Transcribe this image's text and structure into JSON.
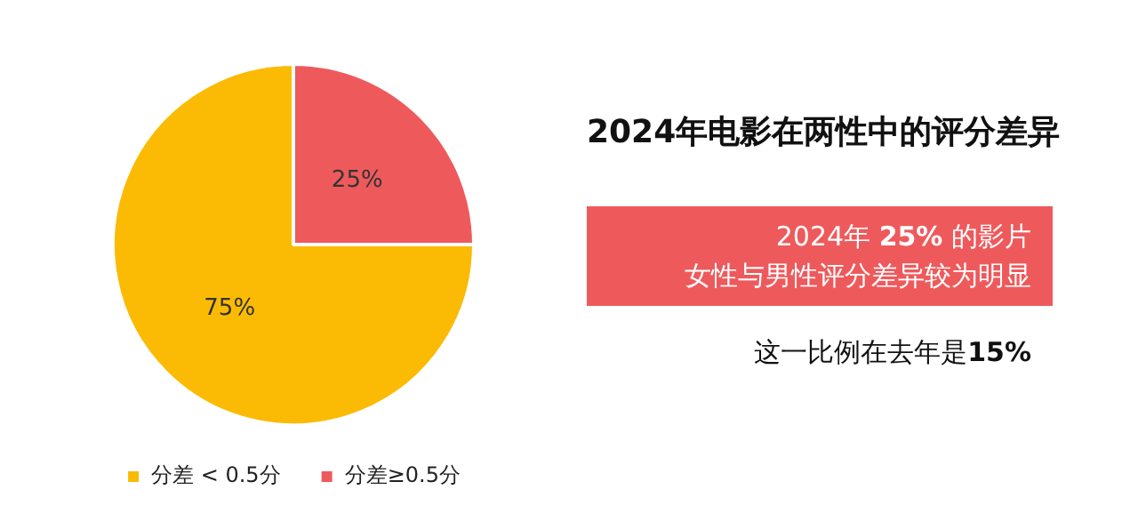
{
  "chart_data": {
    "type": "pie",
    "title": "2024年电影在两性中的评分差异",
    "categories": [
      "分差 < 0.5分",
      "分差≥0.5分"
    ],
    "values": [
      75,
      25
    ],
    "colors": [
      "#fbbb05",
      "#ee5a5c"
    ],
    "value_labels": [
      "75%",
      "25%"
    ],
    "legend": "bottom left",
    "annotations": [
      "2024年 25% 的影片",
      "女性与男性评分差异较为明显",
      "这一比例在去年是15%"
    ]
  }
}
